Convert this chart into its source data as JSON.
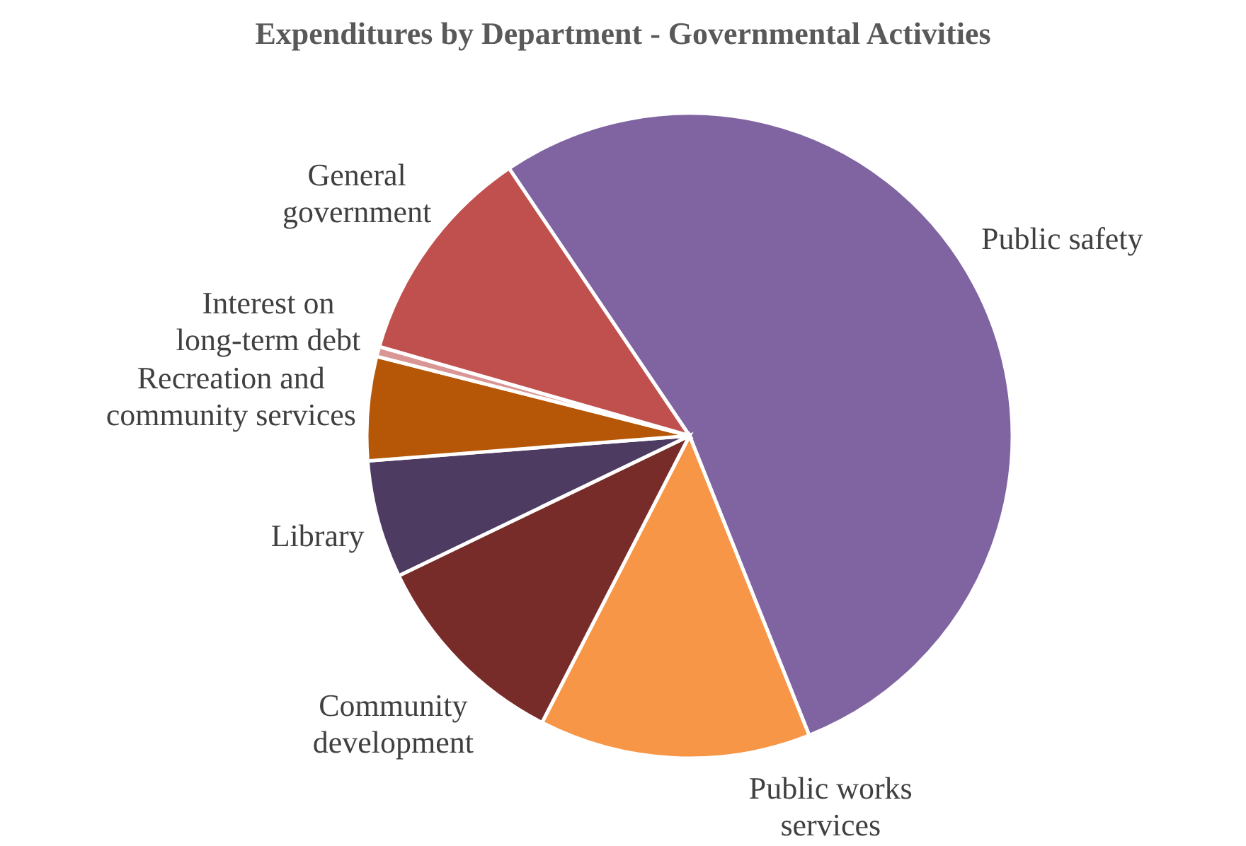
{
  "chart_data": {
    "type": "pie",
    "title": "Expenditures by Department - Governmental Activities",
    "categories": [
      "Public safety",
      "Public works services",
      "Community development",
      "Library",
      "Recreation and community services",
      "Interest on long-term debt",
      "General government"
    ],
    "values": [
      53.4,
      13.6,
      10.3,
      5.9,
      5.2,
      0.5,
      11.1
    ],
    "colors": [
      "#8064a2",
      "#f79646",
      "#772c2a",
      "#4d3b62",
      "#b65708",
      "#d99694",
      "#c0504d"
    ]
  }
}
